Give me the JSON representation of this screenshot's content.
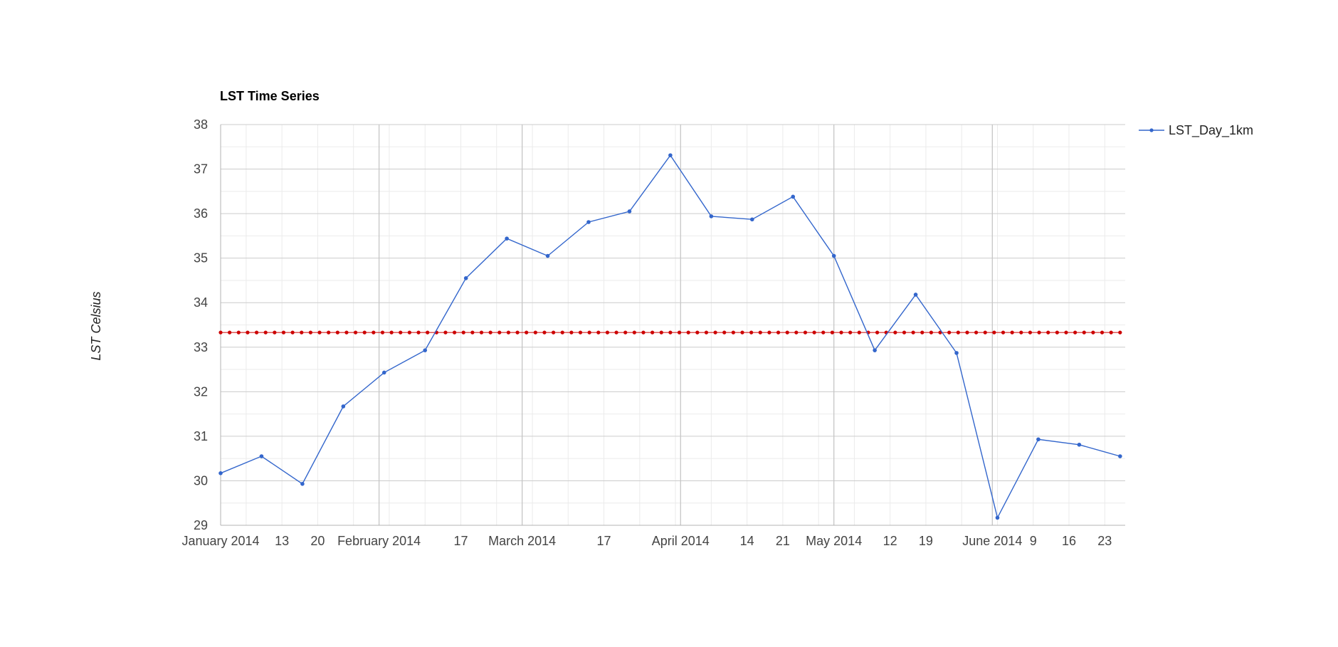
{
  "chart_data": {
    "type": "line",
    "title": "LST  Time Series",
    "xlabel": "",
    "ylabel": "LST Celsius",
    "ylim": [
      29,
      38
    ],
    "xlim": [
      "2014-01-01",
      "2014-06-27"
    ],
    "y_ticks": [
      29,
      30,
      31,
      32,
      33,
      34,
      35,
      36,
      37,
      38
    ],
    "x_ticks": [
      {
        "date": "2014-01-01",
        "label": "January 2014"
      },
      {
        "date": "2014-01-13",
        "label": "13"
      },
      {
        "date": "2014-01-20",
        "label": "20"
      },
      {
        "date": "2014-02-01",
        "label": "February 2014"
      },
      {
        "date": "2014-02-17",
        "label": "17"
      },
      {
        "date": "2014-03-01",
        "label": "March 2014"
      },
      {
        "date": "2014-03-17",
        "label": "17"
      },
      {
        "date": "2014-04-01",
        "label": "April 2014"
      },
      {
        "date": "2014-04-14",
        "label": "14"
      },
      {
        "date": "2014-04-21",
        "label": "21"
      },
      {
        "date": "2014-05-01",
        "label": "May 2014"
      },
      {
        "date": "2014-05-12",
        "label": "12"
      },
      {
        "date": "2014-05-19",
        "label": "19"
      },
      {
        "date": "2014-06-01",
        "label": "June 2014"
      },
      {
        "date": "2014-06-09",
        "label": "9"
      },
      {
        "date": "2014-06-16",
        "label": "16"
      },
      {
        "date": "2014-06-23",
        "label": "23"
      }
    ],
    "month_gridlines": [
      "2014-02-01",
      "2014-03-01",
      "2014-04-01",
      "2014-05-01",
      "2014-06-01"
    ],
    "grid": true,
    "legend_position": "right",
    "series": [
      {
        "name": "LST_Day_1km",
        "color": "#3366cc",
        "points": [
          {
            "x": "2014-01-01",
            "y": 30.17
          },
          {
            "x": "2014-01-09",
            "y": 30.55
          },
          {
            "x": "2014-01-17",
            "y": 29.93
          },
          {
            "x": "2014-01-25",
            "y": 31.67
          },
          {
            "x": "2014-02-02",
            "y": 32.43
          },
          {
            "x": "2014-02-10",
            "y": 32.93
          },
          {
            "x": "2014-02-18",
            "y": 34.55
          },
          {
            "x": "2014-02-26",
            "y": 35.44
          },
          {
            "x": "2014-03-06",
            "y": 35.05
          },
          {
            "x": "2014-03-14",
            "y": 35.81
          },
          {
            "x": "2014-03-22",
            "y": 36.05
          },
          {
            "x": "2014-03-30",
            "y": 37.31
          },
          {
            "x": "2014-04-07",
            "y": 35.94
          },
          {
            "x": "2014-04-15",
            "y": 35.87
          },
          {
            "x": "2014-04-23",
            "y": 36.38
          },
          {
            "x": "2014-05-01",
            "y": 35.05
          },
          {
            "x": "2014-05-09",
            "y": 32.93
          },
          {
            "x": "2014-05-17",
            "y": 34.18
          },
          {
            "x": "2014-05-25",
            "y": 32.87
          },
          {
            "x": "2014-06-02",
            "y": 29.17
          },
          {
            "x": "2014-06-10",
            "y": 30.93
          },
          {
            "x": "2014-06-18",
            "y": 30.81
          },
          {
            "x": "2014-06-26",
            "y": 30.55
          }
        ]
      },
      {
        "name": "",
        "color": "#cc0000",
        "style": "dotted",
        "constant_y": 33.33,
        "x_range": [
          "2014-01-01",
          "2014-06-26"
        ]
      }
    ]
  }
}
